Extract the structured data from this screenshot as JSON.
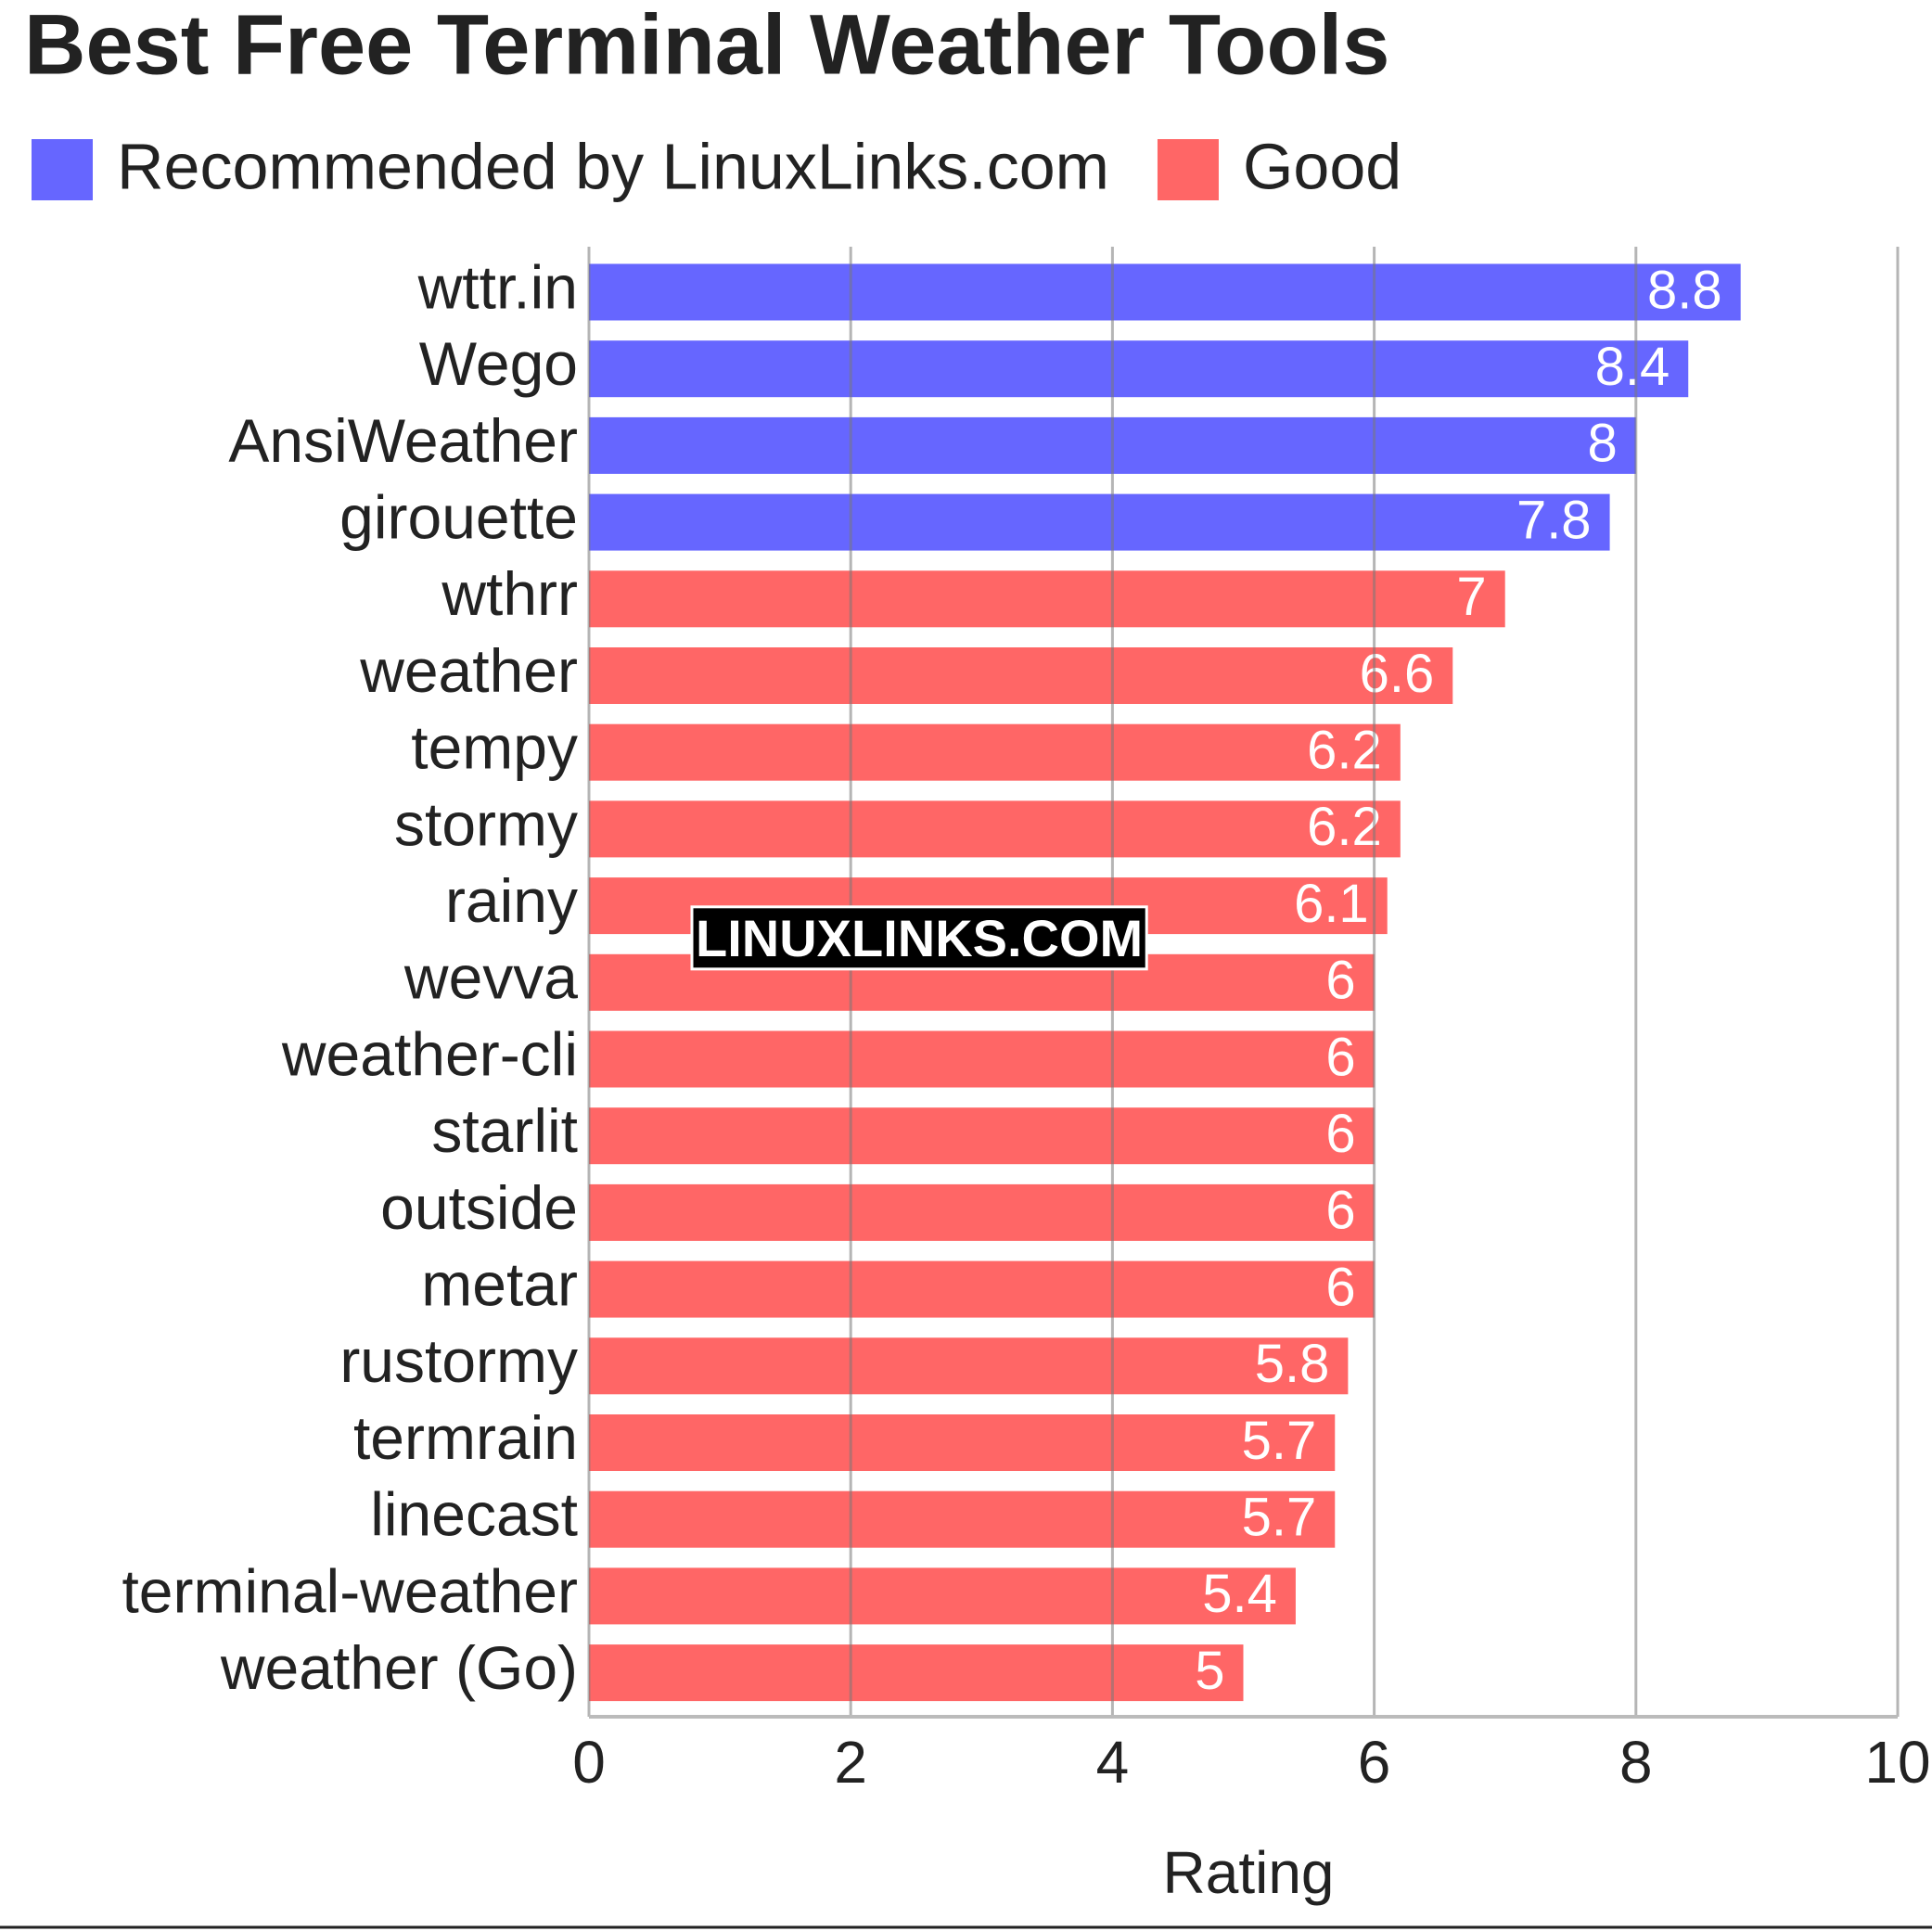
{
  "chart_data": {
    "type": "bar",
    "orientation": "horizontal",
    "title": "Best Free Terminal Weather Tools",
    "categories": [
      "wttr.in",
      "Wego",
      "AnsiWeather",
      "girouette",
      "wthrr",
      "weather",
      "tempy",
      "stormy",
      "rainy",
      "wevva",
      "weather-cli",
      "starlit",
      "outside",
      "metar",
      "rustormy",
      "termrain",
      "linecast",
      "terminal-weather",
      "weather (Go)"
    ],
    "series": [
      {
        "name": "Recommended by LinuxLinks.com",
        "color": "#6666ff",
        "values": [
          8.8,
          8.4,
          8,
          7.8,
          null,
          null,
          null,
          null,
          null,
          null,
          null,
          null,
          null,
          null,
          null,
          null,
          null,
          null,
          null
        ]
      },
      {
        "name": "Good",
        "color": "#ff6666",
        "values": [
          null,
          null,
          null,
          null,
          7,
          6.6,
          6.2,
          6.2,
          6.1,
          6,
          6,
          6,
          6,
          6,
          5.8,
          5.7,
          5.7,
          5.4,
          5
        ]
      }
    ],
    "xlabel": "Rating",
    "xlim": [
      0,
      10
    ],
    "xticks": [
      0,
      2,
      4,
      6,
      8,
      10
    ],
    "grid": true,
    "watermark": "LINUXLINKS.COM"
  }
}
